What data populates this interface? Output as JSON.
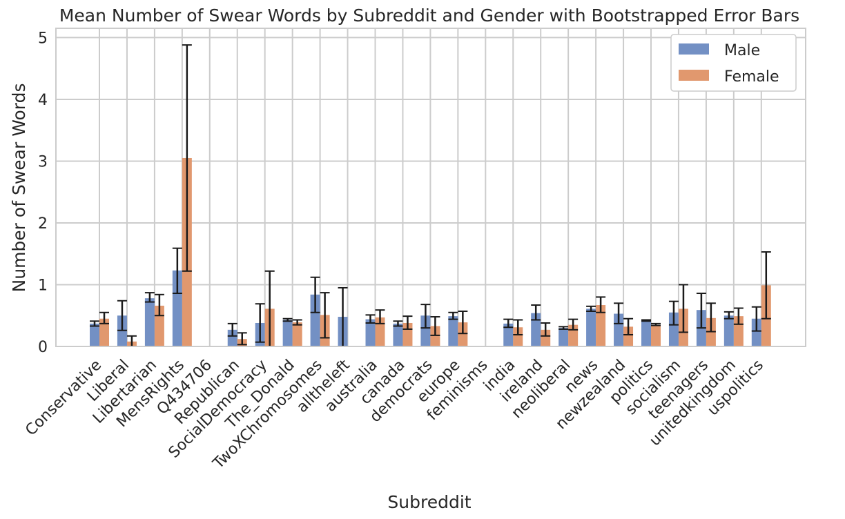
{
  "chart_data": {
    "type": "bar",
    "title": "Mean Number of Swear Words by Subreddit and Gender with Bootstrapped Error Bars",
    "xlabel": "Subreddit",
    "ylabel": "Number of Swear Words",
    "ylim": [
      0,
      5.15
    ],
    "yticks": [
      "0",
      "1",
      "2",
      "3",
      "4",
      "5"
    ],
    "grid": true,
    "legend_position": "top-right",
    "categories": [
      "Conservative",
      "Liberal",
      "Libertarian",
      "MensRights",
      "Q434706",
      "Republican",
      "SocialDemocracy",
      "The_Donald",
      "TwoXChromosomes",
      "alltheleft",
      "australia",
      "canada",
      "democrats",
      "europe",
      "feminisms",
      "india",
      "ireland",
      "neoliberal",
      "news",
      "newzealand",
      "politics",
      "socialism",
      "teenagers",
      "unitedkingdom",
      "uspolitics"
    ],
    "series": [
      {
        "name": "Male",
        "color": "#7390c4",
        "values": [
          0.37,
          0.5,
          0.78,
          1.23,
          null,
          0.27,
          0.38,
          0.43,
          0.84,
          0.48,
          0.44,
          0.37,
          0.5,
          0.49,
          null,
          0.37,
          0.54,
          0.3,
          0.61,
          0.53,
          0.42,
          0.55,
          0.59,
          0.5,
          0.45
        ],
        "err_low": [
          0.33,
          0.26,
          0.72,
          0.86,
          null,
          0.17,
          0.07,
          0.41,
          0.55,
          0.0,
          0.38,
          0.33,
          0.3,
          0.44,
          null,
          0.31,
          0.43,
          0.28,
          0.57,
          0.37,
          0.41,
          0.35,
          0.3,
          0.45,
          0.25
        ],
        "err_high": [
          0.41,
          0.74,
          0.87,
          1.59,
          null,
          0.37,
          0.69,
          0.45,
          1.12,
          0.95,
          0.51,
          0.41,
          0.68,
          0.55,
          null,
          0.44,
          0.67,
          0.32,
          0.65,
          0.7,
          0.43,
          0.73,
          0.86,
          0.56,
          0.64
        ]
      },
      {
        "name": "Female",
        "color": "#e1986e",
        "values": [
          0.45,
          0.08,
          0.66,
          3.05,
          null,
          0.12,
          0.61,
          0.39,
          0.51,
          null,
          0.47,
          0.38,
          0.33,
          0.39,
          null,
          0.31,
          0.27,
          0.35,
          0.67,
          0.32,
          0.35,
          0.61,
          0.46,
          0.49,
          0.99
        ],
        "err_low": [
          0.37,
          0.0,
          0.5,
          1.22,
          null,
          0.03,
          0.0,
          0.35,
          0.14,
          null,
          0.37,
          0.28,
          0.18,
          0.21,
          null,
          0.19,
          0.17,
          0.27,
          0.55,
          0.19,
          0.34,
          0.23,
          0.24,
          0.36,
          0.45
        ],
        "err_high": [
          0.55,
          0.17,
          0.84,
          4.88,
          null,
          0.22,
          1.22,
          0.43,
          0.87,
          null,
          0.59,
          0.49,
          0.48,
          0.57,
          null,
          0.43,
          0.38,
          0.44,
          0.8,
          0.45,
          0.37,
          1.0,
          0.7,
          0.62,
          1.53
        ]
      }
    ]
  }
}
